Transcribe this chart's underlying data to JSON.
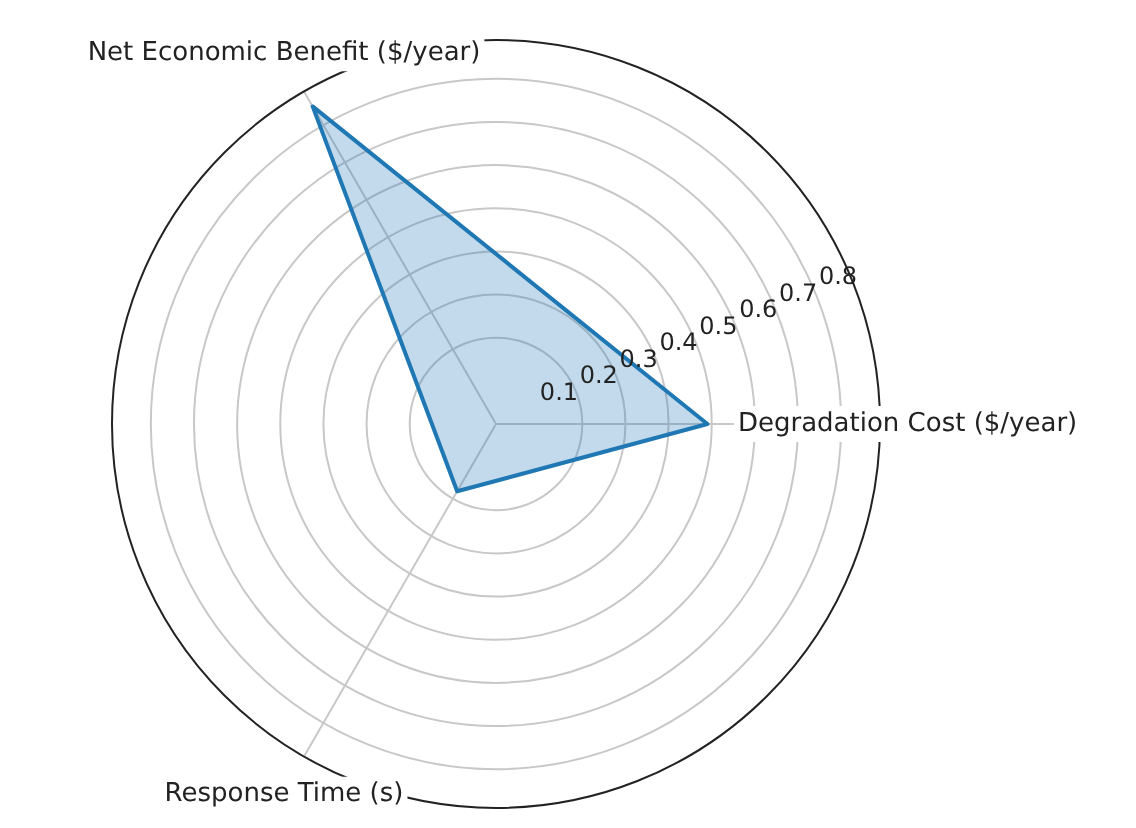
{
  "chart_data": {
    "type": "radar",
    "categories": [
      "Degradation Cost ($/year)",
      "Response Time (s)",
      "Net Economic Benefit ($/year)"
    ],
    "series": [
      {
        "color": "#1f77b4",
        "values": [
          0.49,
          0.18,
          0.85
        ]
      }
    ],
    "ylim": [
      0,
      0.89
    ],
    "yticks": [
      0.1,
      0.2,
      0.3,
      0.4,
      0.5,
      0.6,
      0.7,
      0.8
    ],
    "grid": true,
    "legend": false
  }
}
